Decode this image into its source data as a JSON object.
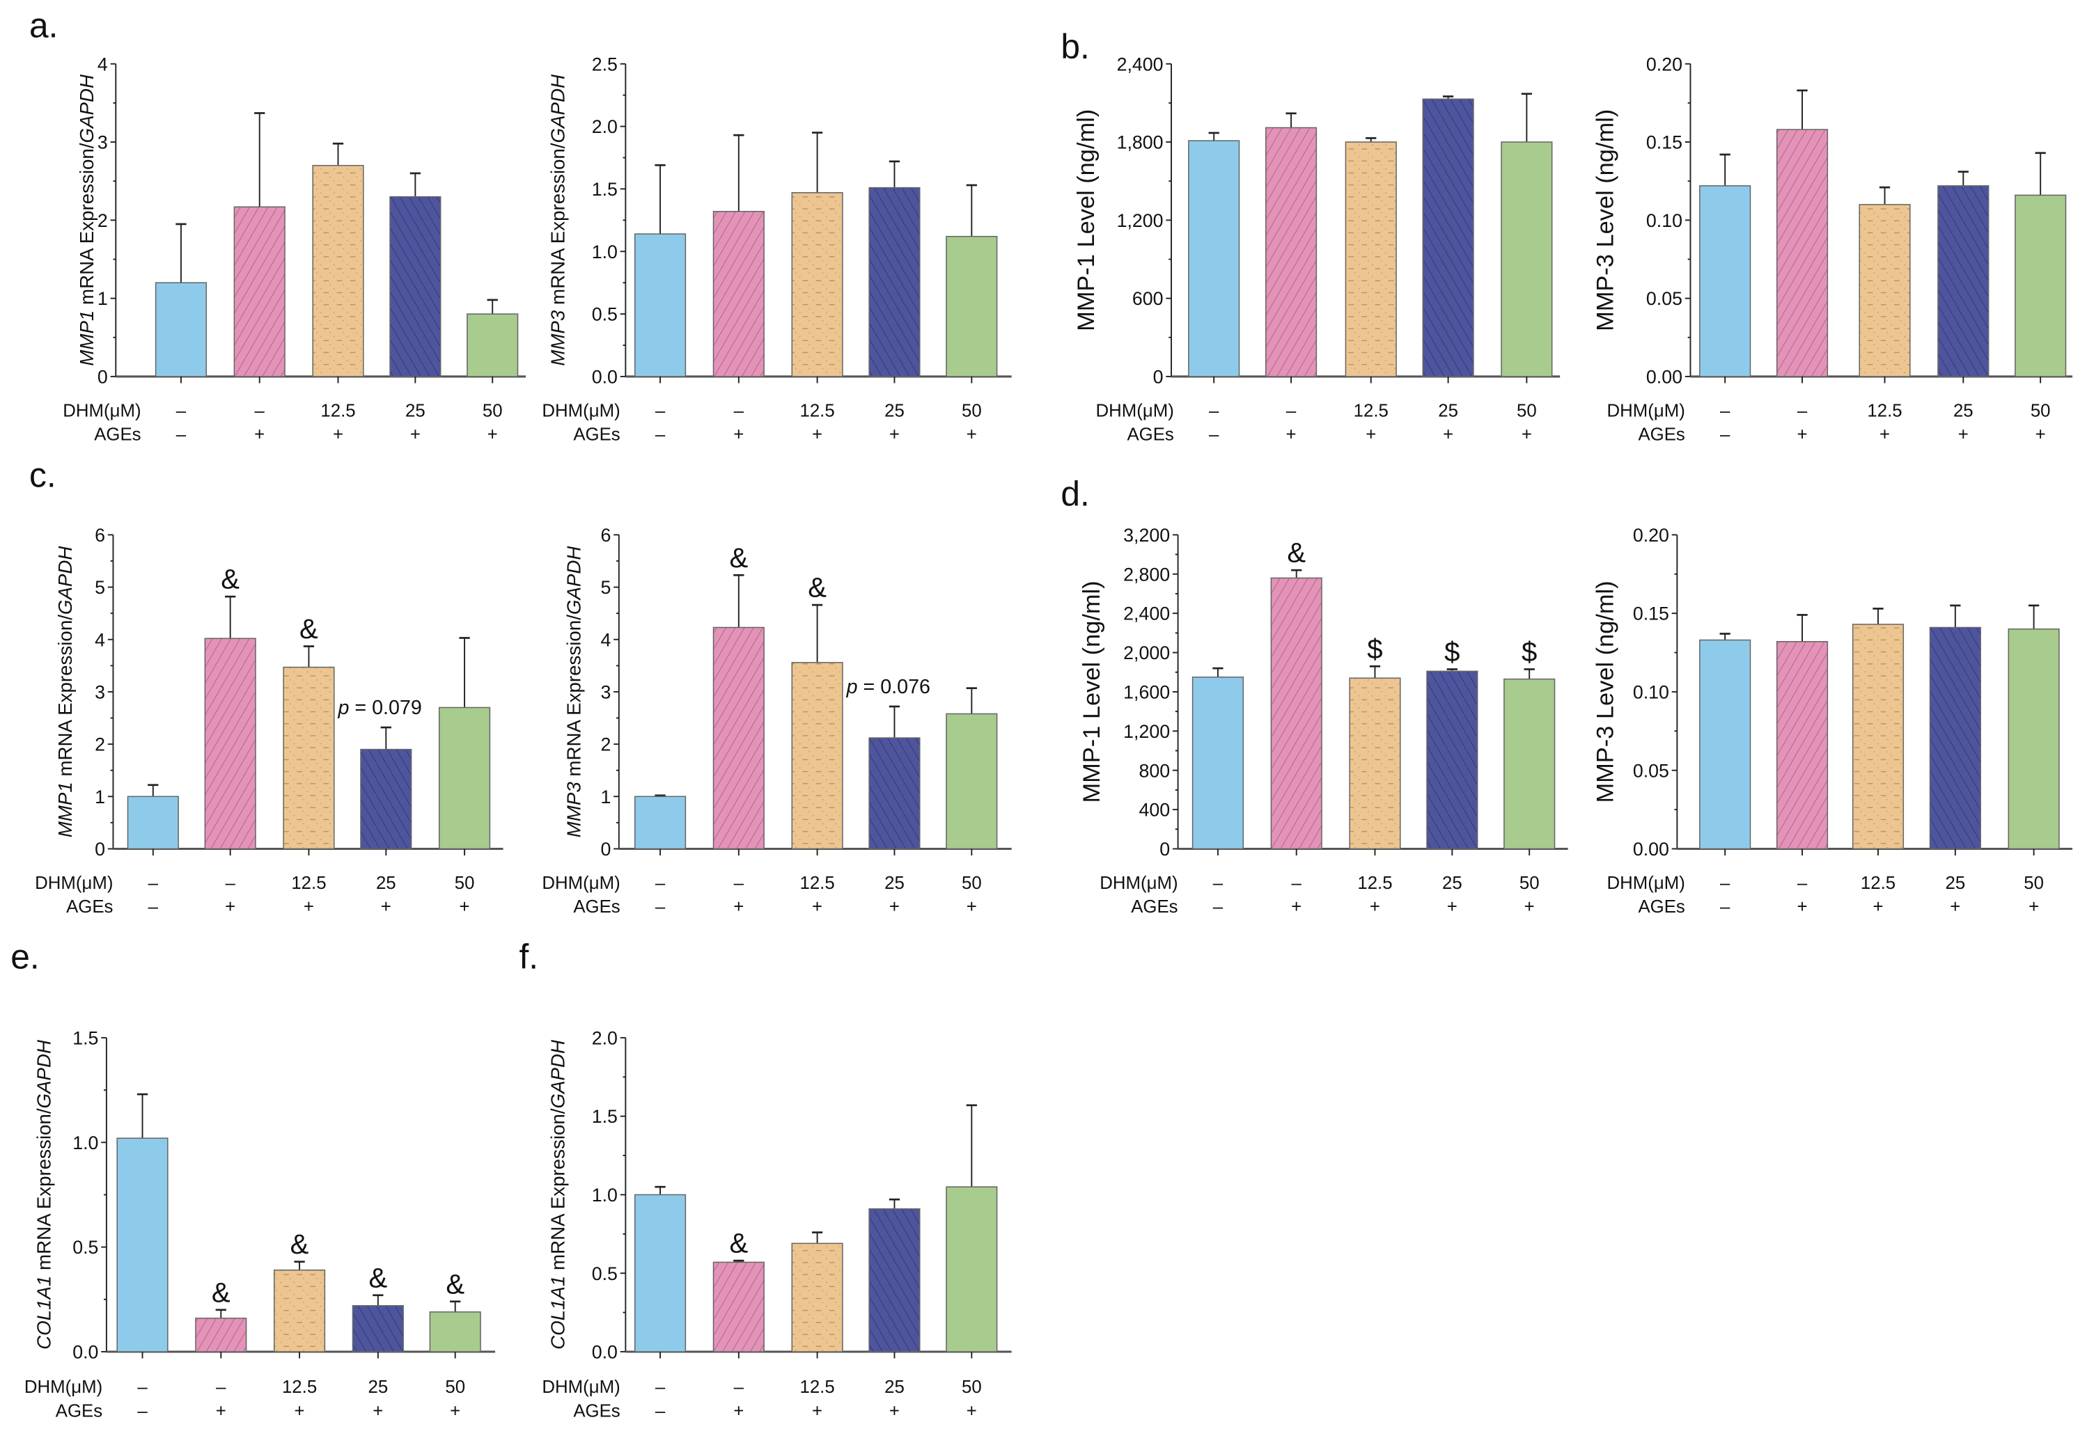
{
  "colors": {
    "control": "#8ecbea",
    "ages": "#e393b8",
    "dhm12": "#ecc590",
    "dhm25": "#4e559d",
    "dhm50": "#a8cb8e",
    "axis": "#222222"
  },
  "conditions": {
    "dhm_label": "DHM(μM)",
    "ages_label": "AGEs",
    "dhm": [
      "–",
      "–",
      "12.5",
      "25",
      "50"
    ],
    "ages": [
      "–",
      "+",
      "+",
      "+",
      "+"
    ]
  },
  "chart_data": [
    {
      "id": "a1",
      "panel": "a.",
      "type": "bar",
      "ylabel": {
        "gene": "MMP1",
        "mid": " mRNA Expression/",
        "ref": "GAPDH"
      },
      "yticks": [
        "0",
        "1",
        "2",
        "3",
        "4"
      ],
      "ylim": [
        0,
        4
      ],
      "values": [
        1.2,
        2.17,
        2.7,
        2.3,
        0.8
      ],
      "errors": [
        0.75,
        1.2,
        0.28,
        0.3,
        0.18
      ],
      "annotations": [
        "",
        "",
        "",
        "",
        ""
      ]
    },
    {
      "id": "a2",
      "panel": "",
      "type": "bar",
      "ylabel": {
        "gene": "MMP3",
        "mid": " mRNA Expression/",
        "ref": "GAPDH"
      },
      "yticks": [
        "0.0",
        "0.5",
        "1.0",
        "1.5",
        "2.0",
        "2.5"
      ],
      "ylim": [
        0,
        2.5
      ],
      "values": [
        1.14,
        1.32,
        1.47,
        1.51,
        1.12
      ],
      "errors": [
        0.55,
        0.61,
        0.48,
        0.21,
        0.41
      ],
      "annotations": [
        "",
        "",
        "",
        "",
        ""
      ]
    },
    {
      "id": "b1",
      "panel": "b.",
      "type": "bar",
      "ylabel": {
        "text": "MMP-1 Level (ng/ml)"
      },
      "yticks": [
        "0",
        "600",
        "1,200",
        "1,800",
        "2,400"
      ],
      "ylim": [
        0,
        2400
      ],
      "values": [
        1810,
        1910,
        1800,
        2130,
        1800
      ],
      "errors": [
        60,
        110,
        30,
        20,
        370
      ],
      "annotations": [
        "",
        "",
        "",
        "",
        ""
      ]
    },
    {
      "id": "b2",
      "panel": "",
      "type": "bar",
      "ylabel": {
        "text": "MMP-3 Level (ng/ml)"
      },
      "yticks": [
        "0.00",
        "0.05",
        "0.10",
        "0.15",
        "0.20"
      ],
      "ylim": [
        0,
        0.2
      ],
      "values": [
        0.122,
        0.158,
        0.11,
        0.122,
        0.116
      ],
      "errors": [
        0.02,
        0.025,
        0.011,
        0.009,
        0.027
      ],
      "annotations": [
        "",
        "",
        "",
        "",
        ""
      ]
    },
    {
      "id": "c1",
      "panel": "c.",
      "type": "bar",
      "ylabel": {
        "gene": "MMP1",
        "mid": " mRNA Expression/",
        "ref": "GAPDH"
      },
      "yticks": [
        "0",
        "1",
        "2",
        "3",
        "4",
        "5",
        "6"
      ],
      "ylim": [
        0,
        6
      ],
      "values": [
        1.0,
        4.02,
        3.47,
        1.9,
        2.7
      ],
      "errors": [
        0.22,
        0.8,
        0.4,
        0.42,
        1.33
      ],
      "annotations": [
        "",
        "&",
        "&",
        "",
        ""
      ],
      "pvalue": {
        "bar": 3,
        "text": "p = 0.079"
      }
    },
    {
      "id": "c2",
      "panel": "",
      "type": "bar",
      "ylabel": {
        "gene": "MMP3",
        "mid": " mRNA Expression/",
        "ref": "GAPDH"
      },
      "yticks": [
        "0",
        "1",
        "2",
        "3",
        "4",
        "5",
        "6"
      ],
      "ylim": [
        0,
        6
      ],
      "values": [
        1.0,
        4.23,
        3.56,
        2.12,
        2.58
      ],
      "errors": [
        0.02,
        1.0,
        1.1,
        0.6,
        0.49
      ],
      "annotations": [
        "",
        "&",
        "&",
        "",
        ""
      ],
      "pvalue": {
        "bar": 3,
        "text": "p = 0.076"
      }
    },
    {
      "id": "d1",
      "panel": "d.",
      "type": "bar",
      "ylabel": {
        "text": "MMP-1 Level (ng/ml)"
      },
      "yticks": [
        "0",
        "400",
        "800",
        "1,200",
        "1,600",
        "2,000",
        "2,400",
        "2,800",
        "3,200"
      ],
      "ylim": [
        0,
        3200
      ],
      "values": [
        1750,
        2760,
        1740,
        1810,
        1730
      ],
      "errors": [
        90,
        80,
        120,
        20,
        100
      ],
      "annotations": [
        "",
        "&",
        "$",
        "$",
        "$"
      ]
    },
    {
      "id": "d2",
      "panel": "",
      "type": "bar",
      "ylabel": {
        "text": "MMP-3 Level (ng/ml)"
      },
      "yticks": [
        "0.00",
        "0.05",
        "0.10",
        "0.15",
        "0.20"
      ],
      "ylim": [
        0,
        0.2
      ],
      "values": [
        0.133,
        0.132,
        0.143,
        0.141,
        0.14
      ],
      "errors": [
        0.004,
        0.017,
        0.01,
        0.014,
        0.015
      ],
      "annotations": [
        "",
        "",
        "",
        "",
        ""
      ]
    },
    {
      "id": "e",
      "panel": "e.",
      "type": "bar",
      "ylabel": {
        "gene": "COL1A1",
        "mid": " mRNA Expression/",
        "ref": "GAPDH"
      },
      "yticks": [
        "0.0",
        "0.5",
        "1.0",
        "1.5"
      ],
      "ylim": [
        0,
        1.5
      ],
      "values": [
        1.02,
        0.16,
        0.39,
        0.22,
        0.19
      ],
      "errors": [
        0.21,
        0.04,
        0.04,
        0.05,
        0.05
      ],
      "annotations": [
        "",
        "&",
        "&",
        "&",
        "&"
      ]
    },
    {
      "id": "f",
      "panel": "f.",
      "type": "bar",
      "ylabel": {
        "gene": "COL1A1",
        "mid": " mRNA Expression/",
        "ref": "GAPDH"
      },
      "yticks": [
        "0.0",
        "0.5",
        "1.0",
        "1.5",
        "2.0"
      ],
      "ylim": [
        0,
        2.0
      ],
      "values": [
        1.0,
        0.57,
        0.69,
        0.91,
        1.05
      ],
      "errors": [
        0.05,
        0.01,
        0.07,
        0.06,
        0.52
      ],
      "annotations": [
        "",
        "&",
        "",
        "",
        ""
      ]
    }
  ]
}
